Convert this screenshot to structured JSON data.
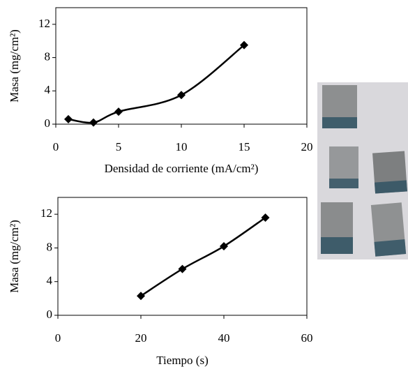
{
  "chart_data": [
    {
      "type": "line",
      "x_label": "Densidad de corriente (mA/cm²)",
      "y_label": "Masa (mg/cm²)",
      "x": [
        1,
        3,
        5,
        10,
        15
      ],
      "values": [
        0.6,
        0.2,
        1.5,
        3.5,
        9.5
      ],
      "color": "#000000",
      "xlim": [
        0,
        20
      ],
      "xticks": [
        0,
        5,
        10,
        15,
        20
      ],
      "ylim": [
        0,
        14
      ],
      "yticks": [
        0,
        4,
        8,
        12
      ]
    },
    {
      "type": "line",
      "x_label": "Tiempo (s)",
      "y_label": "Masa (mg/cm²)",
      "x": [
        20,
        30,
        40,
        50
      ],
      "values": [
        2.3,
        5.5,
        8.2,
        11.6
      ],
      "color": "#000000",
      "xlim": [
        0,
        60
      ],
      "xticks": [
        0,
        20,
        40,
        60
      ],
      "ylim": [
        0,
        14
      ],
      "yticks": [
        0,
        4,
        8,
        12
      ]
    }
  ]
}
